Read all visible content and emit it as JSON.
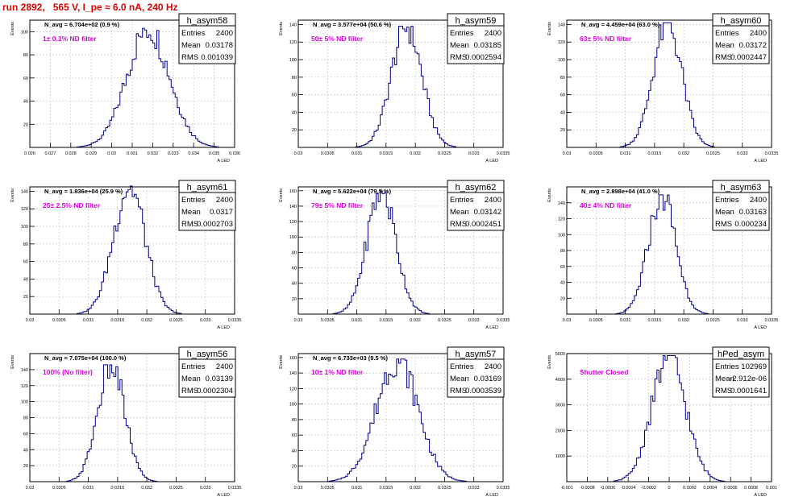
{
  "header": {
    "title": "run 2892,   565 V, I_pe ≈ 6.0 nA, 240 Hz"
  },
  "colors": {
    "hist": "#00008b",
    "annotation": "#e000e0",
    "title": "#e00000",
    "grid": "#c8c8c8"
  },
  "stat_labels": {
    "entries": "Entries",
    "mean": "Mean",
    "rms": "RMS"
  },
  "chart_data": [
    {
      "type": "bar",
      "name": "h_asym58",
      "navg": "N_avg = 6.704e+02 (0.9 %)",
      "label": "1± 0.1% ND filter",
      "entries": "2400",
      "mean": "0.03178",
      "rms": "0.001039",
      "ylabel": "Events",
      "xlabel": "A_LED",
      "xlim": [
        0.026,
        0.036
      ],
      "ylim": [
        0,
        110
      ],
      "center": 0.03178,
      "peak": 103,
      "xticks": [
        0.026,
        0.027,
        0.028,
        0.029,
        0.03,
        0.031,
        0.032,
        0.033,
        0.034,
        0.035,
        0.036
      ],
      "xtick_labels": [
        "0.026",
        "0.027",
        "0.028",
        "0.029",
        "0.03",
        "0.031",
        "0.032",
        "0.033",
        "0.034",
        "0.035",
        "0.036"
      ],
      "yticks": [
        20,
        40,
        60,
        80,
        100
      ],
      "ytick_labels": [
        "20",
        "40",
        "60",
        "80",
        "100"
      ]
    },
    {
      "type": "bar",
      "name": "h_asym59",
      "navg": "N_avg = 3.577e+04 (50.6 %)",
      "label": "50± 5% ND filter",
      "entries": "2400",
      "mean": "0.03185",
      "rms": "0.0002594",
      "ylabel": "Events",
      "xlabel": "A_LED",
      "xlim": [
        0.03,
        0.0335
      ],
      "ylim": [
        0,
        145
      ],
      "center": 0.03185,
      "peak": 138,
      "xticks": [
        0.03,
        0.0305,
        0.031,
        0.0315,
        0.032,
        0.0325,
        0.033,
        0.0335
      ],
      "xtick_labels": [
        "0.03",
        "0.0305",
        "0.031",
        "0.0315",
        "0.032",
        "0.0325",
        "0.033",
        "0.0335"
      ],
      "yticks": [
        20,
        40,
        60,
        80,
        100,
        120,
        140
      ],
      "ytick_labels": [
        "20",
        "40",
        "60",
        "80",
        "100",
        "120",
        "140"
      ]
    },
    {
      "type": "bar",
      "name": "h_asym60",
      "navg": "N_avg = 4.459e+04 (63.0 %)",
      "label": "63± 5% ND filter",
      "entries": "2400",
      "mean": "0.03172",
      "rms": "0.0002447",
      "ylabel": "Events",
      "xlabel": "A_LED",
      "xlim": [
        0.03,
        0.0335
      ],
      "ylim": [
        0,
        145
      ],
      "center": 0.03172,
      "peak": 142,
      "xticks": [
        0.03,
        0.0305,
        0.031,
        0.0315,
        0.032,
        0.0325,
        0.033,
        0.0335
      ],
      "xtick_labels": [
        "0.03",
        "0.0305",
        "0.031",
        "0.0315",
        "0.032",
        "0.0325",
        "0.033",
        "0.0335"
      ],
      "yticks": [
        20,
        40,
        60,
        80,
        100,
        120,
        140
      ],
      "ytick_labels": [
        "20",
        "40",
        "60",
        "80",
        "100",
        "120",
        "140"
      ]
    },
    {
      "type": "bar",
      "name": "h_asym61",
      "navg": "N_avg = 1.836e+04 (25.9 %)",
      "label": "25± 2.5% ND filter",
      "entries": "2400",
      "mean": "0.0317",
      "rms": "0.0002703",
      "ylabel": "Events",
      "xlabel": "A_LED",
      "xlim": [
        0.03,
        0.0335
      ],
      "ylim": [
        0,
        145
      ],
      "center": 0.0317,
      "peak": 146,
      "xticks": [
        0.03,
        0.0305,
        0.031,
        0.0315,
        0.032,
        0.0325,
        0.033,
        0.0335
      ],
      "xtick_labels": [
        "0.03",
        "0.0305",
        "0.031",
        "0.0315",
        "0.032",
        "0.0325",
        "0.033",
        "0.0335"
      ],
      "yticks": [
        20,
        40,
        60,
        80,
        100,
        120,
        140
      ],
      "ytick_labels": [
        "20",
        "40",
        "60",
        "80",
        "100",
        "120",
        "140"
      ]
    },
    {
      "type": "bar",
      "name": "h_asym62",
      "navg": "N_avg = 5.622e+04 (79.5 %)",
      "label": "79± 5% ND filter",
      "entries": "2400",
      "mean": "0.03142",
      "rms": "0.0002451",
      "ylabel": "Events",
      "xlabel": "A_LED",
      "xlim": [
        0.03,
        0.0335
      ],
      "ylim": [
        0,
        165
      ],
      "center": 0.03142,
      "peak": 160,
      "xticks": [
        0.03,
        0.0305,
        0.031,
        0.0315,
        0.032,
        0.0325,
        0.033,
        0.0335
      ],
      "xtick_labels": [
        "0.03",
        "0.0305",
        "0.031",
        "0.0315",
        "0.032",
        "0.0325",
        "0.033",
        "0.0335"
      ],
      "yticks": [
        20,
        40,
        60,
        80,
        100,
        120,
        140,
        160
      ],
      "ytick_labels": [
        "20",
        "40",
        "60",
        "80",
        "100",
        "120",
        "140",
        "160"
      ]
    },
    {
      "type": "bar",
      "name": "h_asym63",
      "navg": "N_avg = 2.898e+04 (41.0 %)",
      "label": "40± 4% ND filter",
      "entries": "2400",
      "mean": "0.03163",
      "rms": "0.000234",
      "ylabel": "Events",
      "xlabel": "A_LED",
      "xlim": [
        0.03,
        0.0335
      ],
      "ylim": [
        0,
        160
      ],
      "center": 0.03163,
      "peak": 150,
      "xticks": [
        0.03,
        0.0305,
        0.031,
        0.0315,
        0.032,
        0.0325,
        0.033,
        0.0335
      ],
      "xtick_labels": [
        "0.03",
        "0.0305",
        "0.031",
        "0.0315",
        "0.032",
        "0.0325",
        "0.033",
        "0.0335"
      ],
      "yticks": [
        20,
        40,
        60,
        80,
        100,
        120,
        140
      ],
      "ytick_labels": [
        "20",
        "40",
        "60",
        "80",
        "100",
        "120",
        "140"
      ]
    },
    {
      "type": "bar",
      "name": "h_asym56",
      "navg": "N_avg = 7.075e+04 (100.0 %)",
      "label": "100% (No filter)",
      "entries": "2400",
      "mean": "0.03139",
      "rms": "0.0002304",
      "ylabel": "Events",
      "xlabel": "A_LED",
      "xlim": [
        0.03,
        0.0335
      ],
      "ylim": [
        0,
        160
      ],
      "center": 0.03139,
      "peak": 146,
      "xticks": [
        0.03,
        0.0305,
        0.031,
        0.0315,
        0.032,
        0.0325,
        0.033,
        0.0335
      ],
      "xtick_labels": [
        "0.03",
        "0.0305",
        "0.031",
        "0.0315",
        "0.032",
        "0.0325",
        "0.033",
        "0.0335"
      ],
      "yticks": [
        20,
        40,
        60,
        80,
        100,
        120,
        140
      ],
      "ytick_labels": [
        "20",
        "40",
        "60",
        "80",
        "100",
        "120",
        "140"
      ]
    },
    {
      "type": "bar",
      "name": "h_asym57",
      "navg": "N_avg = 6.733e+03 (9.5 %)",
      "label": "10± 1% ND filter",
      "entries": "2400",
      "mean": "0.03169",
      "rms": "0.0003539",
      "ylabel": "Events",
      "xlabel": "A_LED",
      "xlim": [
        0.03,
        0.0335
      ],
      "ylim": [
        0,
        165
      ],
      "center": 0.03169,
      "peak": 158,
      "xticks": [
        0.03,
        0.0305,
        0.031,
        0.0315,
        0.032,
        0.0325,
        0.033,
        0.0335
      ],
      "xtick_labels": [
        "0.03",
        "0.0305",
        "0.031",
        "0.0315",
        "0.032",
        "0.0325",
        "0.033",
        "0.0335"
      ],
      "yticks": [
        20,
        40,
        60,
        80,
        100,
        120,
        140,
        160
      ],
      "ytick_labels": [
        "20",
        "40",
        "60",
        "80",
        "100",
        "120",
        "140",
        "160"
      ]
    },
    {
      "type": "bar",
      "name": "hPed_asym",
      "navg": "",
      "label": "Shutter Closed",
      "entries": "102969",
      "mean": "-2.912e-06",
      "rms": "0.0001641",
      "ylabel": "Events",
      "xlabel": "A_LED",
      "xlim": [
        -0.001,
        0.001
      ],
      "ylim": [
        0,
        5000
      ],
      "center": -3e-06,
      "peak": 4920,
      "xticks": [
        -0.001,
        -0.0008,
        -0.0006,
        -0.0004,
        -0.0002,
        0,
        0.0002,
        0.0004,
        0.0006,
        0.0008,
        0.001
      ],
      "xtick_labels": [
        "-0.001",
        "-0.0008",
        "-0.0006",
        "-0.0004",
        "-0.0002",
        "0",
        "0.0002",
        "0.0004",
        "0.0006",
        "0.0008",
        "0.001"
      ],
      "yticks": [
        1000,
        2000,
        3000,
        4000,
        5000
      ],
      "ytick_labels": [
        "1000",
        "2000",
        "3000",
        "4000",
        "5000"
      ]
    }
  ]
}
